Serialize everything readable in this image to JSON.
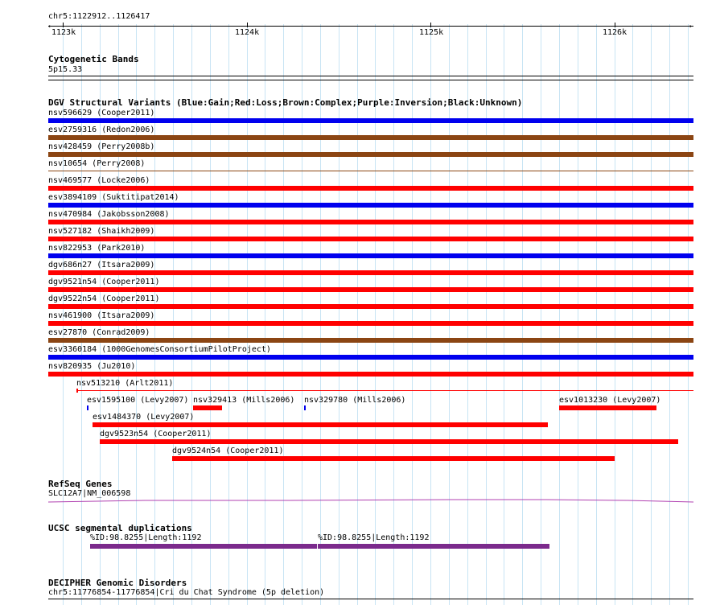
{
  "ruler": {
    "region": "chr5:1122912..1126417",
    "ticks": [
      "1123k",
      "1124k",
      "1125k",
      "1126k"
    ]
  },
  "cytoband": {
    "title": "Cytogenetic Bands",
    "band": "5p15.33"
  },
  "dgv": {
    "title": "DGV Structural Variants (Blue:Gain;Red:Loss;Brown:Complex;Purple:Inversion;Black:Unknown)",
    "colors": {
      "gain": "#0000ee",
      "loss": "#ff0000",
      "complex": "#8b4513"
    },
    "variants": [
      {
        "label": "nsv596629 (Cooper2011)",
        "type": "gain"
      },
      {
        "label": "esv2759316 (Redon2006)",
        "type": "complex"
      },
      {
        "label": "nsv428459 (Perry2008b)",
        "type": "complex"
      },
      {
        "label": "nsv10654 (Perry2008)",
        "type": "complex"
      },
      {
        "label": "nsv469577 (Locke2006)",
        "type": "loss"
      },
      {
        "label": "esv3894109 (Suktitipat2014)",
        "type": "gain"
      },
      {
        "label": "nsv470984 (Jakobsson2008)",
        "type": "loss"
      },
      {
        "label": "nsv527182 (Shaikh2009)",
        "type": "loss"
      },
      {
        "label": "nsv822953 (Park2010)",
        "type": "gain"
      },
      {
        "label": "dgv686n27 (Itsara2009)",
        "type": "loss"
      },
      {
        "label": "dgv9521n54 (Cooper2011)",
        "type": "loss"
      },
      {
        "label": "dgv9522n54 (Cooper2011)",
        "type": "loss"
      },
      {
        "label": "nsv461900 (Itsara2009)",
        "type": "loss"
      },
      {
        "label": "esv27870 (Conrad2009)",
        "type": "complex"
      },
      {
        "label": "esv3360184 (1000GenomesConsortiumPilotProject)",
        "type": "gain"
      },
      {
        "label": "nsv820935 (Ju2010)",
        "type": "loss"
      },
      {
        "label": "nsv513210 (Arlt2011)",
        "type": "loss"
      },
      {
        "label": "esv1595100 (Levy2007)",
        "type": "gain"
      },
      {
        "label": "nsv329413 (Mills2006)",
        "type": "loss"
      },
      {
        "label": "nsv329780 (Mills2006)",
        "type": "gain"
      },
      {
        "label": "esv1013230 (Levy2007)",
        "type": "loss"
      },
      {
        "label": "esv1484370 (Levy2007)",
        "type": "loss"
      },
      {
        "label": "dgv9523n54 (Cooper2011)",
        "type": "loss"
      },
      {
        "label": "dgv9524n54 (Cooper2011)",
        "type": "loss"
      }
    ]
  },
  "refseq": {
    "title": "RefSeq Genes",
    "gene": "SLC12A7|NM_006598"
  },
  "segdup": {
    "title": "UCSC segmental duplications",
    "items": [
      "%ID:98.8255|Length:1192",
      "%ID:98.8255|Length:1192"
    ]
  },
  "decipher": {
    "title": "DECIPHER Genomic Disorders",
    "item": "chr5:11776854-11776854|Cri du Chat Syndrome (5p deletion)"
  }
}
